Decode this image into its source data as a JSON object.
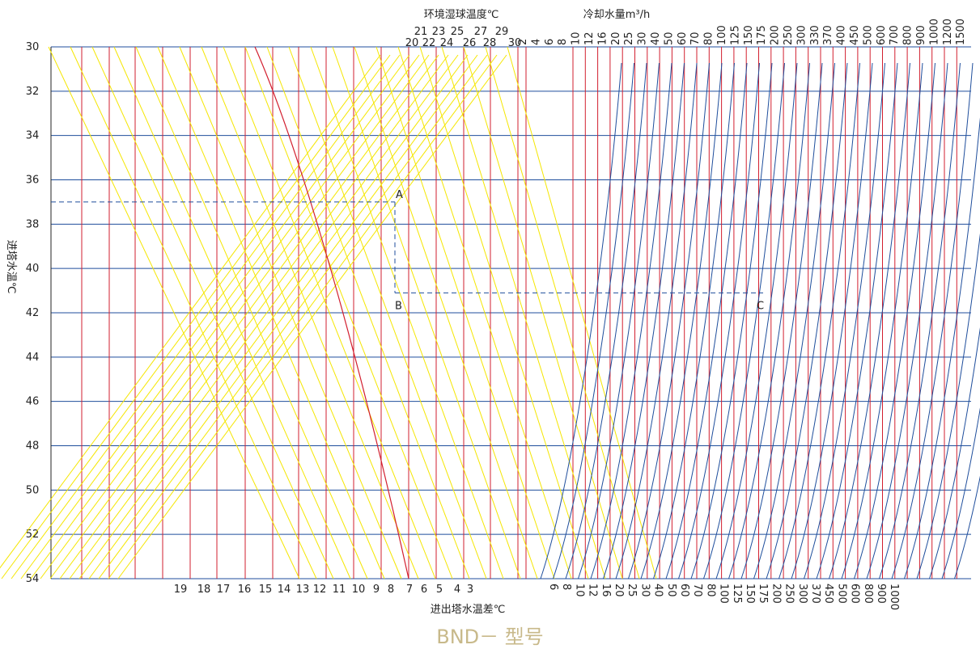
{
  "chart_data": {
    "type": "nomogram",
    "yaxis": {
      "label": "进塔水温℃",
      "ticks": [
        30,
        32,
        34,
        36,
        38,
        40,
        42,
        44,
        46,
        48,
        50,
        52,
        54
      ],
      "range": [
        30,
        54
      ]
    },
    "top_left_label": "环境湿球温度℃",
    "top_right_label": "冷却水量m³/h",
    "bottom_label": "进出塔水温差℃",
    "wet_bulb_row1": [
      "21",
      "23",
      "25",
      "27",
      "29"
    ],
    "wet_bulb_row2": [
      "20",
      "22",
      "24",
      "26",
      "28",
      "30"
    ],
    "flow_top": [
      "2",
      "4",
      "6",
      "8",
      "10",
      "12",
      "16",
      "20",
      "25",
      "30",
      "40",
      "50",
      "60",
      "70",
      "80",
      "100",
      "125",
      "150",
      "175",
      "200",
      "250",
      "300",
      "330",
      "370",
      "400",
      "450",
      "500",
      "600",
      "700",
      "800",
      "900",
      "1000",
      "1200",
      "1500"
    ],
    "temp_diff_ticks": [
      "19",
      "18",
      "17",
      "16",
      "15",
      "14",
      "13",
      "12",
      "11",
      "10",
      "9",
      "8",
      "7",
      "6",
      "5",
      "4",
      "3"
    ],
    "flow_bottom": [
      "6",
      "8",
      "10",
      "12",
      "16",
      "20",
      "25",
      "30",
      "40",
      "50",
      "60",
      "70",
      "80",
      "100",
      "125",
      "150",
      "175",
      "200",
      "250",
      "300",
      "370",
      "450",
      "500",
      "600",
      "800",
      "900",
      "1000"
    ],
    "points": [
      {
        "name": "A",
        "inlet_temp": 37.0
      },
      {
        "name": "B",
        "inlet_temp": 41.1
      },
      {
        "name": "C",
        "inlet_temp": 41.1
      }
    ]
  },
  "footer_model": "BND－  型号",
  "colors": {
    "grid_h": "#1f4e9c",
    "grid_v": "#d21f2f",
    "yellow": "#f5e600",
    "blue": "#1f4e9c",
    "diag": "#d21f2f",
    "dash": "#1f4e9c"
  }
}
